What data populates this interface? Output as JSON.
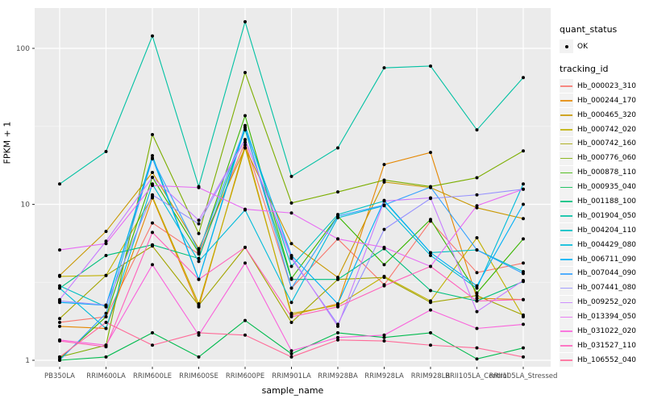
{
  "chart_data": {
    "type": "line",
    "title": "",
    "xlabel": "sample_name",
    "ylabel": "FPKM + 1",
    "y_scale": "log10",
    "ylim": [
      0.92,
      180
    ],
    "y_major_ticks": [
      1,
      10,
      100
    ],
    "y_minor_ticks": [
      3.162,
      31.62
    ],
    "grid": "white-on-gray-panel",
    "panel_color": "#EBEBEB",
    "grid_major_color": "#FFFFFF",
    "grid_minor_color": "#F5F5F5",
    "tick_label_color": "#4D4D4D",
    "point_color": "#000000",
    "legend_position": "right",
    "categories": [
      "PB350LA",
      "RRIM600LA",
      "RRIM600LE",
      "RRIM600SE",
      "RRIM600PE",
      "RRIM901LA",
      "RRIM928BA",
      "RRIM928LA",
      "RRIM928LB",
      "RRII105LA_Control",
      "RRII105LA_Stressed"
    ],
    "series": [
      {
        "name": "Hb_000023_310",
        "color": "#F8766D",
        "values": [
          1.75,
          1.9,
          7.6,
          4.8,
          25,
          2.9,
          6.0,
          3.05,
          7.8,
          3.65,
          4.2
        ]
      },
      {
        "name": "Hb_000244_170",
        "color": "#E58700",
        "values": [
          1.65,
          1.6,
          11.0,
          2.2,
          24,
          1.95,
          2.3,
          18,
          21.5,
          2.5,
          2.45
        ]
      },
      {
        "name": "Hb_000465_320",
        "color": "#C99800",
        "values": [
          3.5,
          6.7,
          16,
          5.2,
          23,
          5.6,
          3.4,
          13.9,
          12.8,
          9.5,
          8.1
        ]
      },
      {
        "name": "Hb_000742_020",
        "color": "#C0B000",
        "values": [
          3.45,
          3.5,
          11.2,
          2.3,
          23,
          2.0,
          2.25,
          3.45,
          2.4,
          6.1,
          1.9
        ]
      },
      {
        "name": "Hb_000742_160",
        "color": "#A3A500",
        "values": [
          1.85,
          3.5,
          5.4,
          2.25,
          5.3,
          1.75,
          3.3,
          3.4,
          2.35,
          2.6,
          1.95
        ]
      },
      {
        "name": "Hb_000776_060",
        "color": "#7CAE00",
        "values": [
          1.05,
          1.25,
          28,
          6.5,
          70,
          10.2,
          12,
          14.3,
          13,
          14.8,
          22
        ]
      },
      {
        "name": "Hb_000878_110",
        "color": "#39B600",
        "values": [
          1.02,
          1.9,
          14.9,
          4.9,
          37,
          3.35,
          8.4,
          4.1,
          8.0,
          2.7,
          6.0
        ]
      },
      {
        "name": "Hb_000935_040",
        "color": "#00BB4E",
        "values": [
          1.0,
          1.05,
          1.5,
          1.05,
          1.8,
          1.1,
          1.5,
          1.4,
          1.5,
          1.02,
          1.2
        ]
      },
      {
        "name": "Hb_001188_100",
        "color": "#00BF7D",
        "values": [
          2.9,
          4.7,
          5.5,
          4.5,
          30,
          3.3,
          3.3,
          5.2,
          2.8,
          2.4,
          3.2
        ]
      },
      {
        "name": "Hb_001904_050",
        "color": "#00C1A3",
        "values": [
          13.5,
          21.8,
          120,
          13,
          148,
          15.1,
          23,
          75,
          77,
          30,
          65
        ]
      },
      {
        "name": "Hb_004204_110",
        "color": "#00BFC4",
        "values": [
          3.0,
          2.2,
          20.5,
          3.3,
          32,
          4.0,
          8.6,
          10.5,
          4.9,
          5.1,
          3.7
        ]
      },
      {
        "name": "Hb_004429_080",
        "color": "#00BBDA",
        "values": [
          2.9,
          1.6,
          13.5,
          4.3,
          9.2,
          2.35,
          8.2,
          9.8,
          4.7,
          2.9,
          13.5
        ]
      },
      {
        "name": "Hb_006711_090",
        "color": "#00B0F6",
        "values": [
          2.35,
          2.25,
          19.8,
          3.3,
          31,
          4.7,
          2.3,
          10.6,
          4.9,
          3.0,
          10.0
        ]
      },
      {
        "name": "Hb_007044_090",
        "color": "#35A2FF",
        "values": [
          1.0,
          2.0,
          19.6,
          5.0,
          31,
          2.9,
          8.4,
          9.9,
          12.9,
          5.1,
          3.6
        ]
      },
      {
        "name": "Hb_007441_080",
        "color": "#9590FF",
        "values": [
          2.4,
          2.26,
          11.5,
          7.5,
          26,
          4.5,
          1.7,
          6.9,
          10.9,
          11.5,
          12.5
        ]
      },
      {
        "name": "Hb_009252_020",
        "color": "#C77CFF",
        "values": [
          2.45,
          5.8,
          14.9,
          7.9,
          26,
          4.6,
          1.65,
          10.5,
          11.0,
          2.05,
          3.25
        ]
      },
      {
        "name": "Hb_013394_050",
        "color": "#E76BF3",
        "values": [
          5.1,
          5.6,
          13.2,
          12.8,
          9.3,
          8.8,
          6.0,
          5.3,
          4.0,
          9.8,
          12.5
        ]
      },
      {
        "name": "Hb_031022_020",
        "color": "#FA62DB",
        "values": [
          1.35,
          1.25,
          4.1,
          1.45,
          4.2,
          1.15,
          1.4,
          1.45,
          2.1,
          1.6,
          1.7
        ]
      },
      {
        "name": "Hb_031527_110",
        "color": "#FF62BC",
        "values": [
          1.33,
          1.22,
          6.6,
          3.3,
          5.3,
          1.9,
          2.2,
          3.0,
          4.0,
          2.4,
          2.45
        ]
      },
      {
        "name": "Hb_106552_040",
        "color": "#FF6A98",
        "values": [
          1.05,
          1.75,
          1.25,
          1.5,
          1.45,
          1.05,
          1.35,
          1.33,
          1.25,
          1.2,
          1.05
        ]
      }
    ]
  },
  "axes": {
    "y_title": "FPKM + 1",
    "x_title": "sample_name",
    "y_tick_labels": [
      "100",
      "10",
      "1"
    ]
  },
  "legend": {
    "quant_status_title": "quant_status",
    "quant_status_items": [
      {
        "label": "OK",
        "marker": "black-point"
      }
    ],
    "tracking_id_title": "tracking_id"
  }
}
